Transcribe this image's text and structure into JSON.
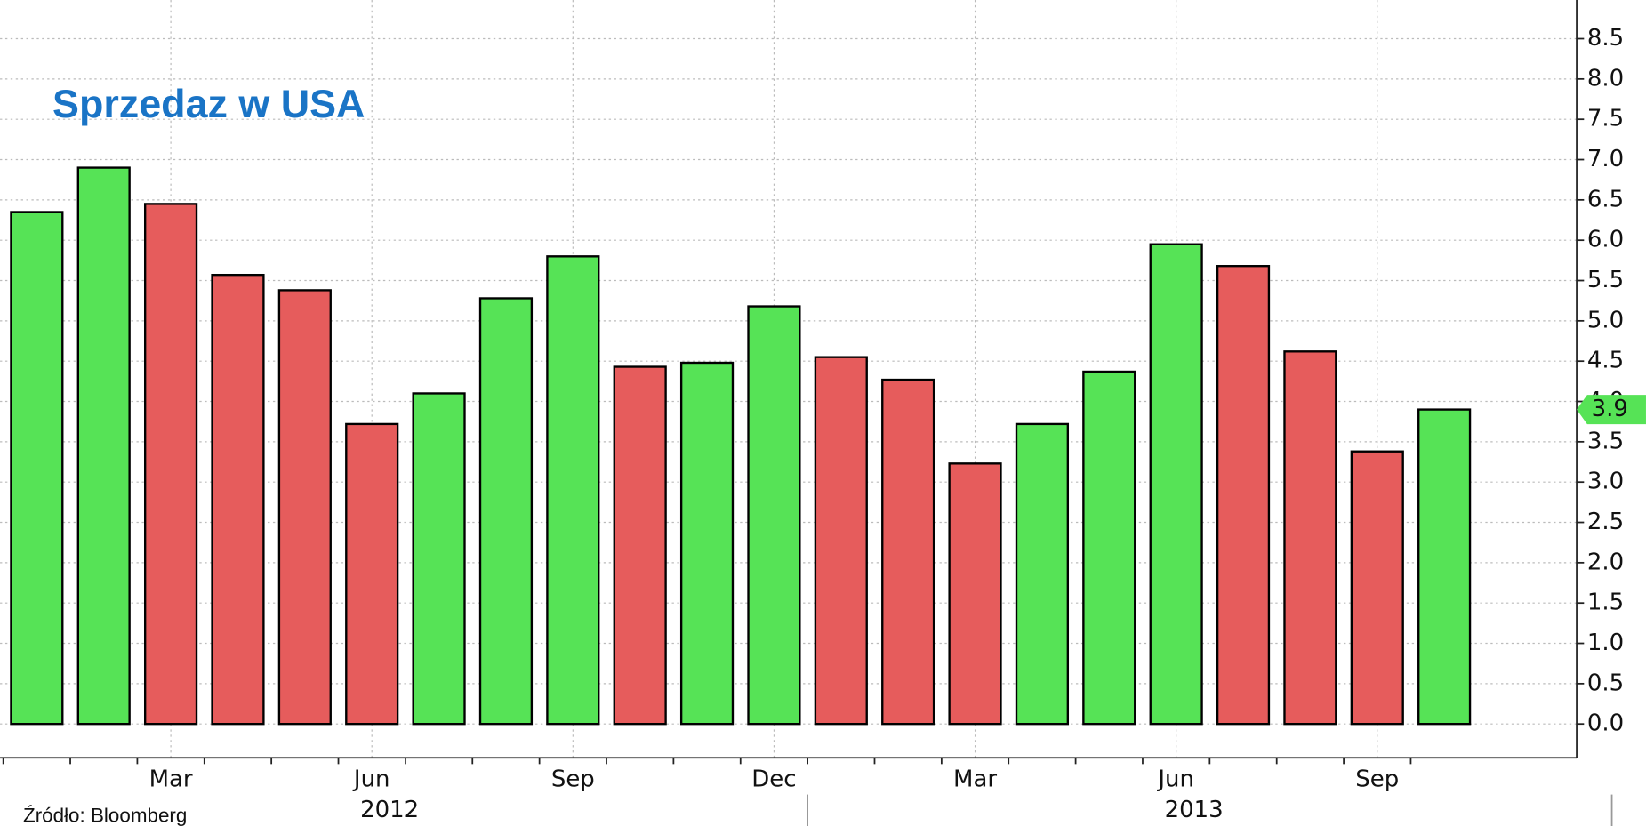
{
  "chart_data": {
    "type": "bar",
    "title": "Sprzedaz w USA",
    "source": "Źródło: Bloomberg",
    "categories": [
      null,
      null,
      "Mar",
      null,
      null,
      "Jun",
      null,
      null,
      "Sep",
      null,
      null,
      "Dec",
      null,
      null,
      "Mar",
      null,
      null,
      "Jun",
      null,
      null,
      "Sep",
      null
    ],
    "year_labels": [
      "2012",
      "2013"
    ],
    "values": [
      6.35,
      6.9,
      6.45,
      5.57,
      5.38,
      3.72,
      4.1,
      5.28,
      5.8,
      4.43,
      4.48,
      5.18,
      4.55,
      4.27,
      3.23,
      3.72,
      4.37,
      5.95,
      5.68,
      4.62,
      3.38,
      3.9
    ],
    "colors": [
      "#56e356",
      "#56e356",
      "#e65c5c",
      "#e65c5c",
      "#e65c5c",
      "#e65c5c",
      "#56e356",
      "#56e356",
      "#56e356",
      "#e65c5c",
      "#56e356",
      "#56e356",
      "#e65c5c",
      "#e65c5c",
      "#e65c5c",
      "#56e356",
      "#56e356",
      "#56e356",
      "#e65c5c",
      "#e65c5c",
      "#e65c5c",
      "#56e356"
    ],
    "ylim": [
      -0.42,
      8.98
    ],
    "yticks": [
      {
        "value": 0,
        "label": "0.0"
      },
      {
        "value": 0.5,
        "label": "0.5"
      },
      {
        "value": 1,
        "label": "1.0"
      },
      {
        "value": 1.5,
        "label": "1.5"
      },
      {
        "value": 2,
        "label": "2.0"
      },
      {
        "value": 2.5,
        "label": "2.5"
      },
      {
        "value": 3,
        "label": "3.0"
      },
      {
        "value": 3.5,
        "label": "3.5"
      },
      {
        "value": 4,
        "label": "4.0"
      },
      {
        "value": 4.5,
        "label": "4.5"
      },
      {
        "value": 5,
        "label": "5.0"
      },
      {
        "value": 5.5,
        "label": "5.5"
      },
      {
        "value": 6,
        "label": "6.0"
      },
      {
        "value": 6.5,
        "label": "6.5"
      },
      {
        "value": 7,
        "label": "7.0"
      },
      {
        "value": 7.5,
        "label": "7.5"
      },
      {
        "value": 8,
        "label": "8.0"
      },
      {
        "value": 8.5,
        "label": "8.5"
      }
    ],
    "grid": true
  }
}
